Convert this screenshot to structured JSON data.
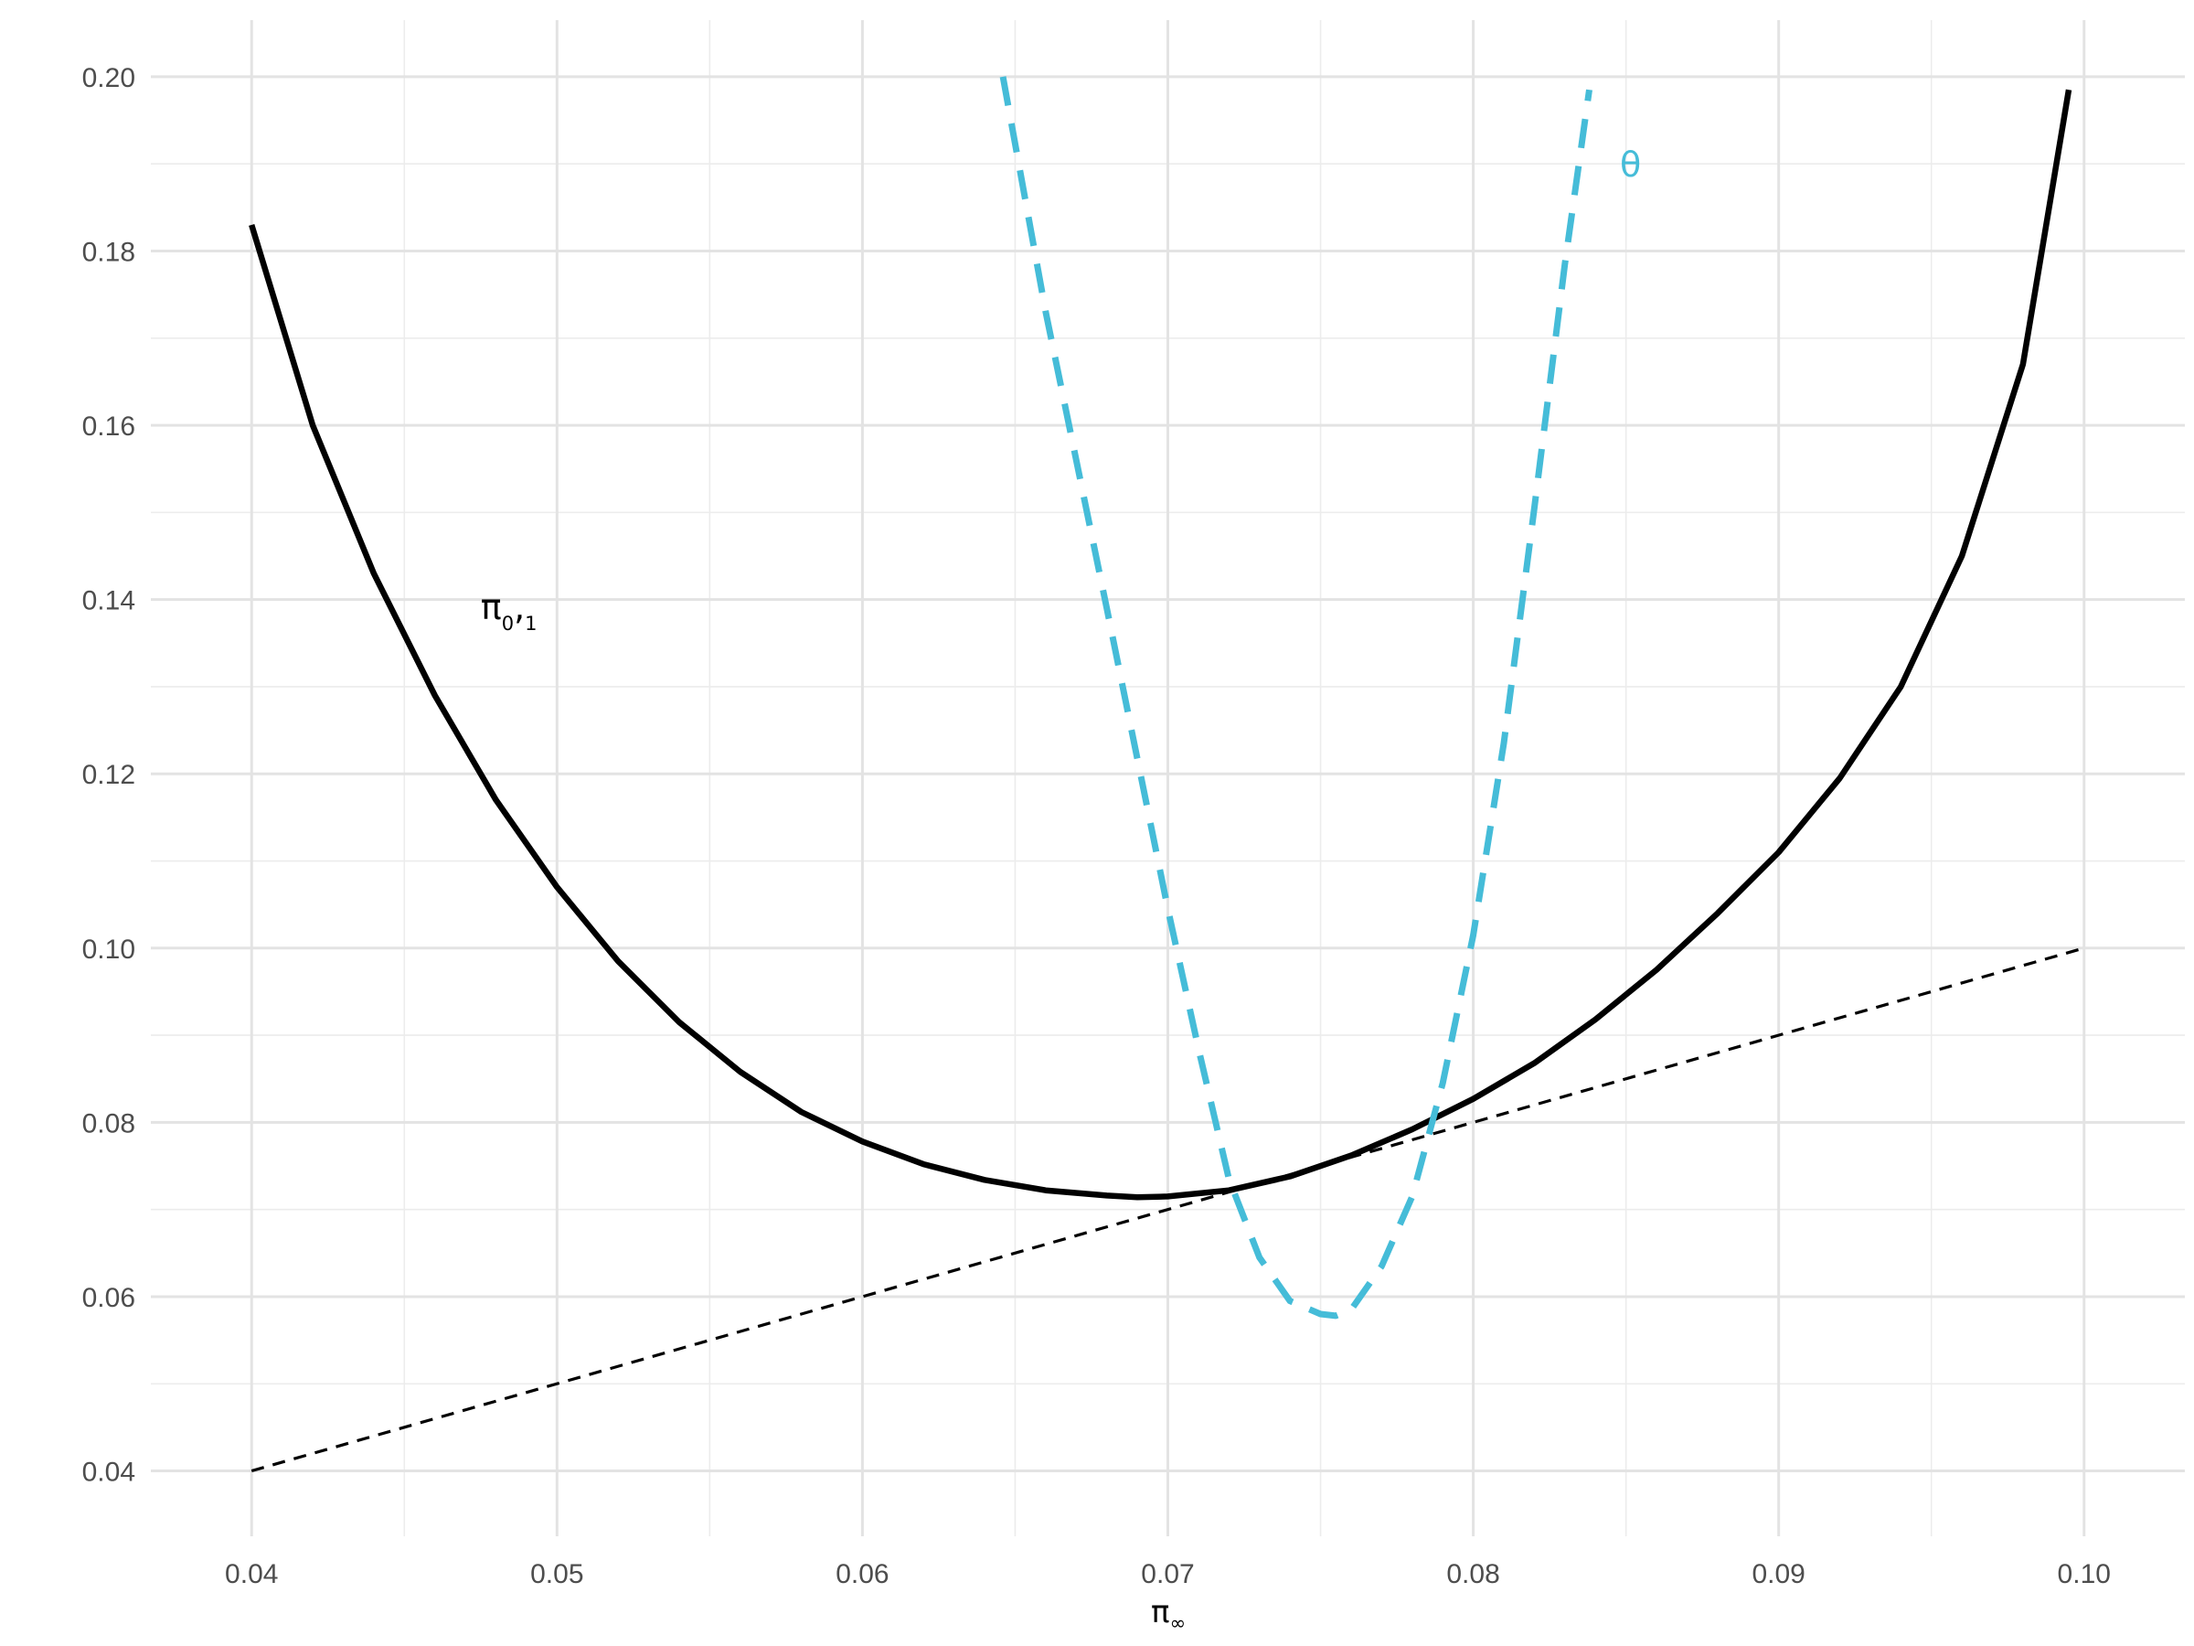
{
  "chart_data": {
    "type": "line",
    "title": "",
    "xlabel_main": "π",
    "xlabel_sub": "∞",
    "ylabel": "",
    "xlim": [
      0.0367,
      0.1033
    ],
    "ylim": [
      0.0325,
      0.2065
    ],
    "x_ticks": [
      "0.04",
      "0.05",
      "0.06",
      "0.07",
      "0.08",
      "0.09",
      "0.10"
    ],
    "y_ticks": [
      "0.04",
      "0.06",
      "0.08",
      "0.10",
      "0.12",
      "0.14",
      "0.16",
      "0.18",
      "0.20"
    ],
    "grid": true,
    "legend": "none",
    "series": [
      {
        "label_main": "π",
        "label_sub1": "0",
        "label_comma": ",",
        "label_sub2": "1",
        "label_at": [
          0.0475,
          0.139
        ],
        "color": "#000000",
        "style": "solid",
        "x": [
          0.04,
          0.042,
          0.044,
          0.046,
          0.048,
          0.05,
          0.052,
          0.054,
          0.056,
          0.058,
          0.06,
          0.062,
          0.064,
          0.066,
          0.068,
          0.069,
          0.07,
          0.072,
          0.074,
          0.076,
          0.078,
          0.08,
          0.082,
          0.084,
          0.086,
          0.088,
          0.09,
          0.092,
          0.094,
          0.096,
          0.098,
          0.0995
        ],
        "y": [
          0.183,
          0.16,
          0.143,
          0.129,
          0.117,
          0.107,
          0.0985,
          0.0915,
          0.0858,
          0.0812,
          0.0778,
          0.0752,
          0.0734,
          0.0722,
          0.0716,
          0.0714,
          0.0715,
          0.0722,
          0.0738,
          0.0762,
          0.0792,
          0.0827,
          0.0868,
          0.0918,
          0.0975,
          0.104,
          0.111,
          0.1195,
          0.13,
          0.145,
          0.167,
          0.1985
        ]
      },
      {
        "label_main": "θ",
        "label_at": [
          0.0848,
          0.19
        ],
        "color": "#45bcd8",
        "style": "dashed",
        "x": [
          0.0646,
          0.066,
          0.068,
          0.07,
          0.071,
          0.072,
          0.073,
          0.074,
          0.075,
          0.0755,
          0.076,
          0.077,
          0.078,
          0.079,
          0.08,
          0.081,
          0.082,
          0.083,
          0.0838
        ],
        "y": [
          0.2,
          0.173,
          0.139,
          0.1045,
          0.0885,
          0.0735,
          0.0645,
          0.0595,
          0.058,
          0.0578,
          0.0585,
          0.0635,
          0.0715,
          0.0845,
          0.1015,
          0.1235,
          0.1505,
          0.1785,
          0.1985
        ]
      },
      {
        "color": "#000000",
        "style": "dotted-dash",
        "x": [
          0.04,
          0.1
        ],
        "y": [
          0.04,
          0.1
        ]
      }
    ]
  }
}
